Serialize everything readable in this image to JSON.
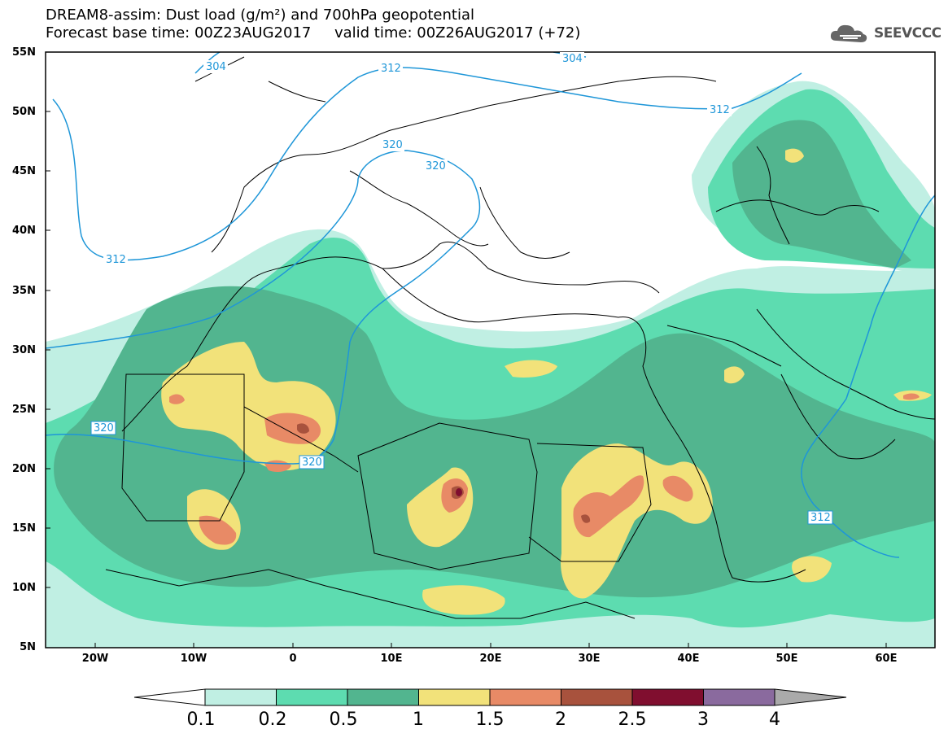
{
  "title": {
    "line1": "DREAM8-assim: Dust load (g/m²) and 700hPa geopotential",
    "line2": "Forecast base time: 00Z23AUG2017     valid time: 00Z26AUG2017 (+72)"
  },
  "logo": {
    "text": "SEEVCCC",
    "icon": "cloud-icon"
  },
  "axes": {
    "lat_labels": [
      "55N",
      "50N",
      "45N",
      "40N",
      "35N",
      "30N",
      "25N",
      "20N",
      "15N",
      "10N",
      "5N"
    ],
    "lon_labels": [
      "20W",
      "10W",
      "0",
      "10E",
      "20E",
      "30E",
      "40E",
      "50E",
      "60E"
    ]
  },
  "contour_labels": {
    "c304a": "304",
    "c304b": "304",
    "c312a": "312",
    "c312b": "312",
    "c312c": "312",
    "c312d": "312",
    "c320a": "320",
    "c320b": "320",
    "c320c": "320",
    "c320d": "320"
  },
  "colorbar": {
    "labels": [
      "0.1",
      "0.2",
      "0.5",
      "1",
      "1.5",
      "2",
      "2.5",
      "3",
      "4"
    ],
    "colors": [
      "#c0efe3",
      "#5ddcb0",
      "#52b58f",
      "#f2e27a",
      "#e88a66",
      "#a8523d",
      "#800e2f",
      "#8a6a9e",
      "#aaaaaa"
    ]
  },
  "colors": {
    "geopotential_line": "#1e96d8",
    "coastline": "#000000"
  }
}
